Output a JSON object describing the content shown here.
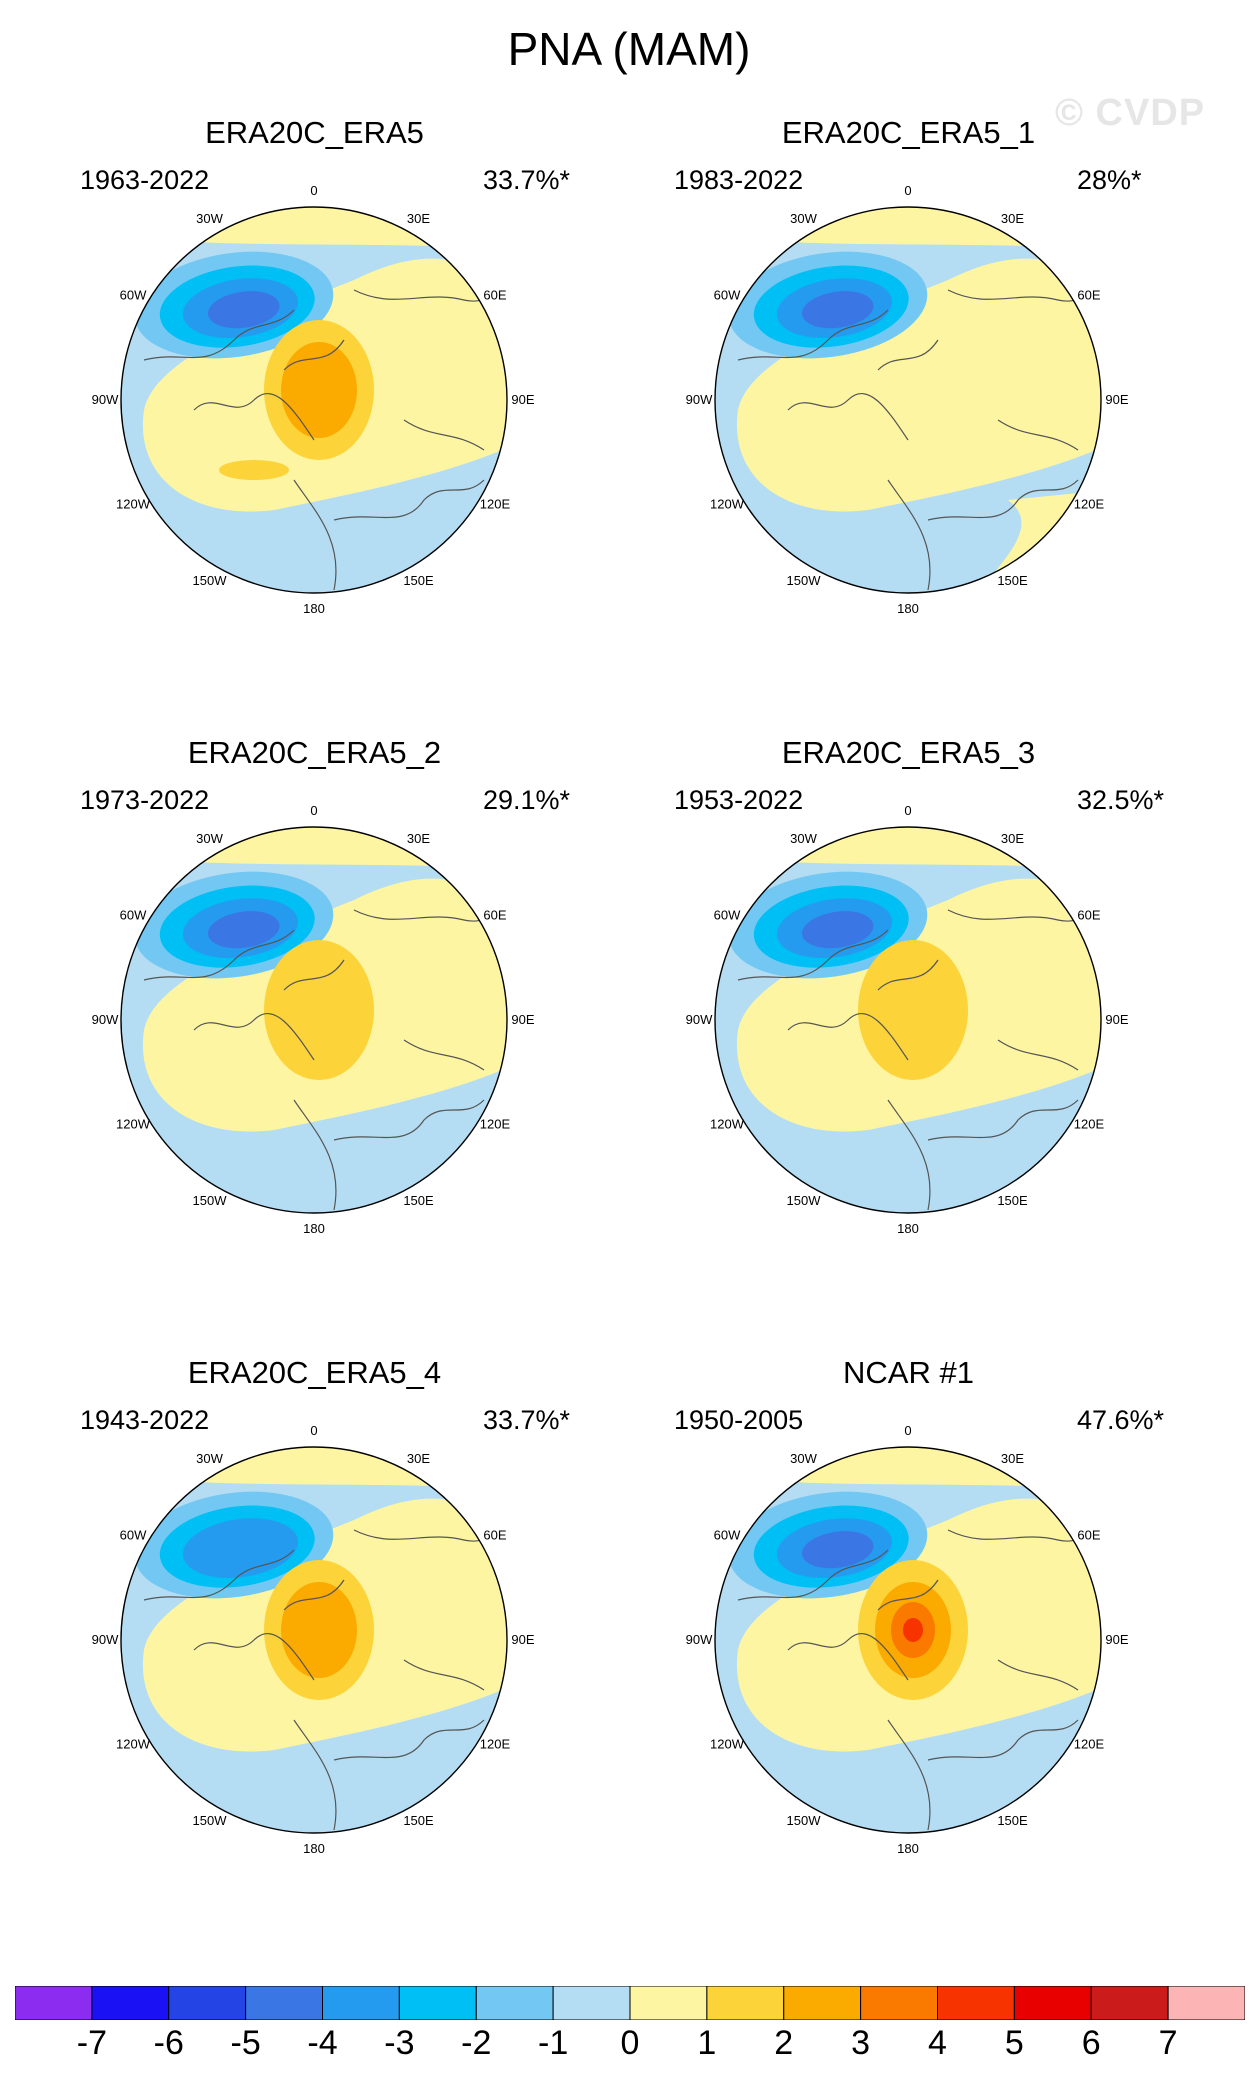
{
  "title": "PNA (MAM)",
  "watermark": "© CVDP",
  "panels": [
    {
      "name": "ERA20C_ERA5",
      "period": "1963-2022",
      "pct": "33.7%*"
    },
    {
      "name": "ERA20C_ERA5_1",
      "period": "1983-2022",
      "pct": "28%*"
    },
    {
      "name": "ERA20C_ERA5_2",
      "period": "1973-2022",
      "pct": "29.1%*"
    },
    {
      "name": "ERA20C_ERA5_3",
      "period": "1953-2022",
      "pct": "32.5%*"
    },
    {
      "name": "ERA20C_ERA5_4",
      "period": "1943-2022",
      "pct": "33.7%*"
    },
    {
      "name": "NCAR #1",
      "period": "1950-2005",
      "pct": "47.6%*"
    }
  ],
  "longitude_labels": {
    "top": "180",
    "bottom": "0",
    "upper_left": "150W",
    "upper_right": "150E",
    "mid_upper_left": "120W",
    "mid_upper_right": "120E",
    "left": "90W",
    "right": "90E",
    "mid_lower_left": "60W",
    "mid_lower_right": "60E",
    "lower_left": "30W",
    "lower_right": "30E"
  },
  "colorbar": {
    "colors": [
      "#8b2cf0",
      "#1a12f4",
      "#2444e6",
      "#3a76e4",
      "#259bf0",
      "#00bff4",
      "#72c8f2",
      "#b4ddf3",
      "#fdf5a2",
      "#fcd339",
      "#fbab00",
      "#fa7a00",
      "#f73300",
      "#e80000",
      "#cc1b1b",
      "#fdb4b4"
    ],
    "labels": [
      "-7",
      "-6",
      "-5",
      "-4",
      "-3",
      "-2",
      "-1",
      "0",
      "1",
      "2",
      "3",
      "4",
      "5",
      "6",
      "7"
    ]
  },
  "chart_data": {
    "type": "heatmap",
    "title": "PNA (MAM)",
    "contour_levels": [
      -7,
      -6,
      -5,
      -4,
      -3,
      -2,
      -1,
      0,
      1,
      2,
      3,
      4,
      5,
      6,
      7
    ]
  }
}
